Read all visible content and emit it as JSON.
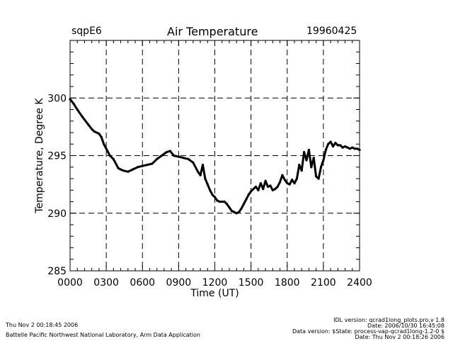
{
  "header": {
    "site": "sqpE6",
    "title": "Air Temperature",
    "date": "19960425"
  },
  "footer": {
    "left": [
      "Thu Nov  2 00:18:45 2006",
      "Battelle Pacific Northwest National Laboratory, Arm Data Application"
    ],
    "right": [
      "IDL version: qcrad1long_plots.pro,v 1.8",
      "Date: 2006/10/30 16:45:08",
      "Data version: $State: process-vap-qcrad1long-1.2-0 $",
      "Date: Thu Nov  2 00:18:26 2006"
    ]
  },
  "chart_data": {
    "type": "line",
    "title": "Air Temperature",
    "xlabel": "Time (UT)",
    "ylabel": "Temperature, Degree K",
    "xlim": [
      0,
      2400
    ],
    "ylim": [
      285,
      305
    ],
    "x_ticks": [
      "0000",
      "0300",
      "0600",
      "0900",
      "1200",
      "1500",
      "1800",
      "2100",
      "2400"
    ],
    "y_ticks": [
      "285",
      "290",
      "295",
      "300"
    ],
    "grid": true,
    "series": [
      {
        "x": [
          0,
          30,
          60,
          100,
          150,
          180,
          200,
          240,
          260,
          280,
          310,
          330,
          360,
          400,
          440,
          480,
          520,
          560,
          600,
          640,
          680,
          720,
          760,
          800,
          830,
          860,
          900,
          940,
          980,
          1020,
          1060,
          1080,
          1100,
          1120,
          1140,
          1160,
          1180,
          1200,
          1220,
          1240,
          1260,
          1280,
          1300,
          1320,
          1340,
          1360,
          1380,
          1400,
          1420,
          1440,
          1460,
          1480,
          1500,
          1520,
          1540,
          1560,
          1580,
          1600,
          1620,
          1640,
          1660,
          1680,
          1700,
          1720,
          1740,
          1760,
          1780,
          1800,
          1820,
          1840,
          1860,
          1880,
          1900,
          1920,
          1940,
          1960,
          1980,
          2000,
          2020,
          2040,
          2060,
          2080,
          2100,
          2120,
          2140,
          2160,
          2180,
          2200,
          2220,
          2240,
          2260,
          2280,
          2300,
          2320,
          2340,
          2360,
          2380,
          2400
        ],
        "values": [
          299.9,
          299.5,
          299.0,
          298.4,
          297.7,
          297.3,
          297.1,
          296.9,
          296.6,
          296.0,
          295.4,
          295.0,
          294.7,
          293.9,
          293.7,
          293.6,
          293.8,
          294.0,
          294.1,
          294.2,
          294.3,
          294.7,
          295.0,
          295.3,
          295.4,
          295.0,
          294.9,
          294.8,
          294.7,
          294.4,
          293.6,
          293.3,
          294.2,
          293.0,
          292.5,
          292.0,
          291.6,
          291.4,
          291.1,
          291.0,
          291.0,
          291.0,
          290.8,
          290.5,
          290.2,
          290.1,
          290.0,
          290.1,
          290.4,
          290.8,
          291.2,
          291.6,
          291.9,
          292.1,
          292.3,
          292.0,
          292.6,
          292.1,
          292.8,
          292.3,
          292.4,
          292.0,
          292.1,
          292.3,
          292.7,
          293.3,
          292.9,
          292.6,
          292.5,
          292.9,
          292.6,
          293.0,
          294.2,
          293.7,
          295.3,
          294.6,
          295.5,
          294.0,
          294.8,
          293.2,
          293.0,
          294.0,
          294.6,
          295.5,
          296.0,
          296.2,
          295.8,
          296.1,
          295.9,
          295.9,
          295.7,
          295.8,
          295.7,
          295.6,
          295.7,
          295.6,
          295.6,
          295.5
        ]
      }
    ]
  }
}
